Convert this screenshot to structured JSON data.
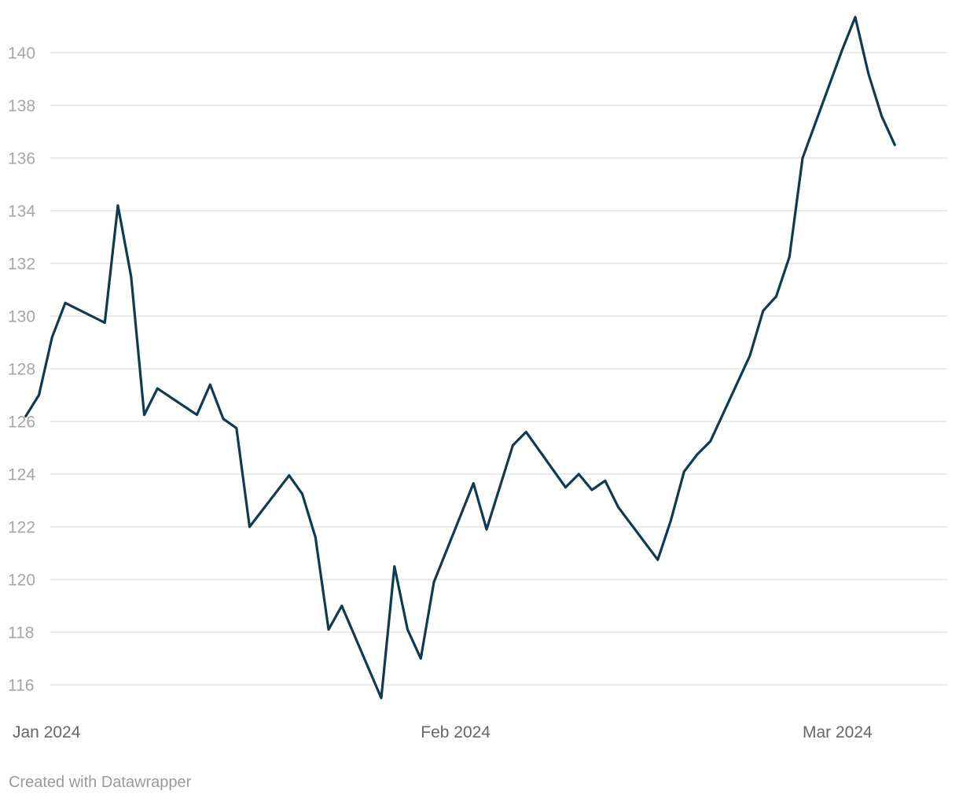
{
  "footer": {
    "credit": "Created with Datawrapper"
  },
  "colors": {
    "line": "#0e3a52",
    "grid": "#e3e3e3"
  },
  "chart_data": {
    "type": "line",
    "x_axis": {
      "type": "date",
      "range": [
        "2024-01-01",
        "2024-03-08"
      ],
      "ticks": [
        {
          "date": "2024-01-01",
          "label": "Jan 2024"
        },
        {
          "date": "2024-02-01",
          "label": "Feb 2024"
        },
        {
          "date": "2024-03-01",
          "label": "Mar 2024"
        }
      ]
    },
    "y_axis": {
      "range": [
        115,
        141.5
      ],
      "ticks": [
        116,
        118,
        120,
        122,
        124,
        126,
        128,
        130,
        132,
        134,
        136,
        138,
        140
      ],
      "grid": true
    },
    "legend": "none",
    "series": [
      {
        "points": [
          [
            "2024-01-02",
            126.2
          ],
          [
            "2024-01-03",
            127.0
          ],
          [
            "2024-01-04",
            129.2
          ],
          [
            "2024-01-05",
            130.5
          ],
          [
            "2024-01-08",
            129.75
          ],
          [
            "2024-01-09",
            134.2
          ],
          [
            "2024-01-10",
            131.5
          ],
          [
            "2024-01-11",
            126.25
          ],
          [
            "2024-01-12",
            127.25
          ],
          [
            "2024-01-15",
            126.25
          ],
          [
            "2024-01-16",
            127.4
          ],
          [
            "2024-01-17",
            126.1
          ],
          [
            "2024-01-18",
            125.75
          ],
          [
            "2024-01-19",
            122.0
          ],
          [
            "2024-01-22",
            123.95
          ],
          [
            "2024-01-23",
            123.25
          ],
          [
            "2024-01-24",
            121.6
          ],
          [
            "2024-01-25",
            118.1
          ],
          [
            "2024-01-26",
            119.0
          ],
          [
            "2024-01-29",
            115.5
          ],
          [
            "2024-01-30",
            120.5
          ],
          [
            "2024-01-31",
            118.1
          ],
          [
            "2024-02-01",
            117.0
          ],
          [
            "2024-02-02",
            119.9
          ],
          [
            "2024-02-05",
            123.65
          ],
          [
            "2024-02-06",
            121.9
          ],
          [
            "2024-02-08",
            125.1
          ],
          [
            "2024-02-09",
            125.6
          ],
          [
            "2024-02-12",
            123.5
          ],
          [
            "2024-02-13",
            124.0
          ],
          [
            "2024-02-14",
            123.4
          ],
          [
            "2024-02-15",
            123.75
          ],
          [
            "2024-02-16",
            122.75
          ],
          [
            "2024-02-19",
            120.75
          ],
          [
            "2024-02-20",
            122.25
          ],
          [
            "2024-02-21",
            124.1
          ],
          [
            "2024-02-22",
            124.75
          ],
          [
            "2024-02-23",
            125.25
          ],
          [
            "2024-02-26",
            128.5
          ],
          [
            "2024-02-27",
            130.2
          ],
          [
            "2024-02-28",
            130.75
          ],
          [
            "2024-02-29",
            132.25
          ],
          [
            "2024-03-01",
            136.0
          ],
          [
            "2024-03-04",
            140.1
          ],
          [
            "2024-03-05",
            141.35
          ],
          [
            "2024-03-06",
            139.2
          ],
          [
            "2024-03-07",
            137.6
          ],
          [
            "2024-03-08",
            136.5
          ]
        ]
      }
    ]
  }
}
